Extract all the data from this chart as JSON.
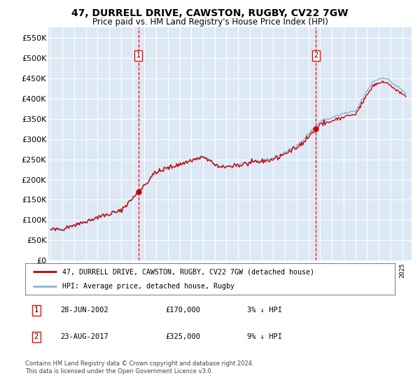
{
  "title1": "47, DURRELL DRIVE, CAWSTON, RUGBY, CV22 7GW",
  "title2": "Price paid vs. HM Land Registry's House Price Index (HPI)",
  "legend_line1": "47, DURRELL DRIVE, CAWSTON, RUGBY, CV22 7GW (detached house)",
  "legend_line2": "HPI: Average price, detached house, Rugby",
  "sale1_date": "28-JUN-2002",
  "sale1_price": "£170,000",
  "sale1_hpi": "3% ↓ HPI",
  "sale2_date": "23-AUG-2017",
  "sale2_price": "£325,000",
  "sale2_hpi": "9% ↓ HPI",
  "footer": "Contains HM Land Registry data © Crown copyright and database right 2024.\nThis data is licensed under the Open Government Licence v3.0.",
  "bg_color": "#dce9f5",
  "line_color_property": "#cc0000",
  "line_color_hpi": "#8ab4d4",
  "sale1_x": 2002.49,
  "sale1_y": 170000,
  "sale2_x": 2017.64,
  "sale2_y": 325000,
  "ylim": [
    0,
    575000
  ],
  "xlim_start": 1994.8,
  "xlim_end": 2025.8
}
